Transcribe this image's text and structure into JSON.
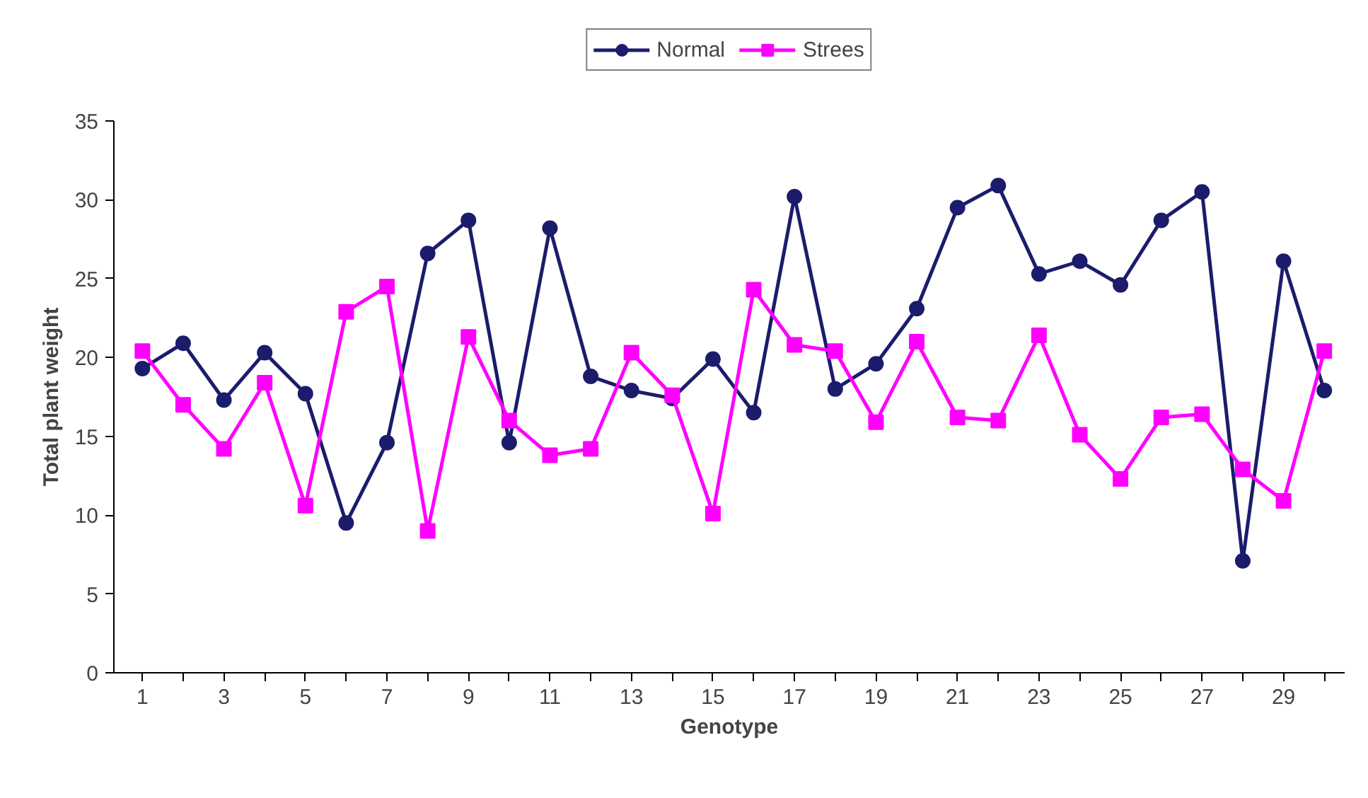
{
  "chart_data": {
    "type": "line",
    "xlabel": "Genotype",
    "ylabel": "Total plant weight",
    "x": [
      1,
      2,
      3,
      4,
      5,
      6,
      7,
      8,
      9,
      10,
      11,
      12,
      13,
      14,
      15,
      16,
      17,
      18,
      19,
      20,
      21,
      22,
      23,
      24,
      25,
      26,
      27,
      28,
      29,
      30
    ],
    "series": [
      {
        "name": "Normal",
        "color": "#1c1c6c",
        "marker": "circle",
        "values": [
          19.3,
          20.9,
          17.3,
          20.3,
          17.7,
          9.5,
          14.6,
          26.6,
          28.7,
          14.6,
          28.2,
          18.8,
          17.9,
          17.4,
          19.9,
          16.5,
          30.2,
          18.0,
          19.6,
          23.1,
          29.5,
          30.9,
          25.3,
          26.1,
          24.6,
          28.7,
          30.5,
          7.1,
          26.1,
          17.9
        ]
      },
      {
        "name": "Strees",
        "color": "#ff00ff",
        "marker": "square",
        "values": [
          20.4,
          17.0,
          14.2,
          18.4,
          10.6,
          22.9,
          24.5,
          9.0,
          21.3,
          16.0,
          13.8,
          14.2,
          20.3,
          17.6,
          10.1,
          24.3,
          20.8,
          20.4,
          15.9,
          21.0,
          16.2,
          16.0,
          21.4,
          15.1,
          12.3,
          16.2,
          16.4,
          12.9,
          10.9,
          20.4
        ]
      }
    ],
    "xlim": [
      0.3,
      30.5
    ],
    "xticks": [
      1,
      {
        "value": 2,
        "label": null
      },
      3,
      {
        "value": 4,
        "label": null
      },
      5,
      {
        "value": 6,
        "label": null
      },
      7,
      {
        "value": 8,
        "label": null
      },
      9,
      {
        "value": 10,
        "label": null
      },
      11,
      {
        "value": 12,
        "label": null
      },
      13,
      {
        "value": 14,
        "label": null
      },
      15,
      {
        "value": 16,
        "label": null
      },
      17,
      {
        "value": 18,
        "label": null
      },
      19,
      {
        "value": 20,
        "label": null
      },
      21,
      {
        "value": 22,
        "label": null
      },
      23,
      {
        "value": 24,
        "label": null
      },
      25,
      {
        "value": 26,
        "label": null
      },
      27,
      {
        "value": 28,
        "label": null
      },
      29,
      {
        "value": 30,
        "label": null
      }
    ],
    "ylim": [
      0,
      35
    ],
    "yticks": [
      0,
      5,
      10,
      15,
      20,
      25,
      30,
      35
    ],
    "grid": false,
    "legend": "top",
    "line_style": "solid"
  }
}
